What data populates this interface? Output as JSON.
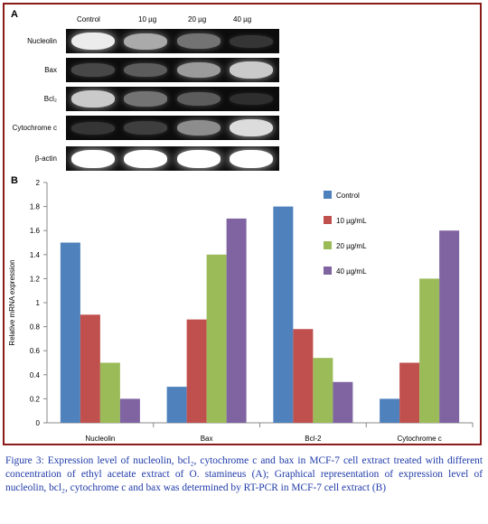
{
  "gel": {
    "panel_label": "A",
    "columns": [
      "Control",
      "10 µg",
      "20 µg",
      "40 µg"
    ],
    "rows": [
      {
        "label": "Nucleolin",
        "bands": [
          0.95,
          0.75,
          0.55,
          0.25
        ]
      },
      {
        "label": "Bax",
        "bands": [
          0.35,
          0.45,
          0.7,
          0.85
        ]
      },
      {
        "label": "Bcl₂",
        "bands": [
          0.85,
          0.55,
          0.45,
          0.2
        ]
      },
      {
        "label": "Cytochrome c",
        "bands": [
          0.25,
          0.3,
          0.65,
          0.9
        ]
      },
      {
        "label": "β-actin",
        "bands": [
          1.0,
          1.0,
          1.0,
          1.0
        ]
      }
    ]
  },
  "chart_data": {
    "panel_label": "B",
    "type": "bar",
    "categories": [
      "Nucleolin",
      "Bax",
      "Bcl-2",
      "Cytochrome c"
    ],
    "series": [
      {
        "name": "Control",
        "color": "#4f81bd",
        "values": [
          1.5,
          0.3,
          1.8,
          0.2
        ]
      },
      {
        "name": "10 µg/mL",
        "color": "#c0504d",
        "values": [
          0.9,
          0.86,
          0.78,
          0.5
        ]
      },
      {
        "name": "20 µg/mL",
        "color": "#9bbb59",
        "values": [
          0.5,
          1.4,
          0.54,
          1.2
        ]
      },
      {
        "name": "40 µg/mL",
        "color": "#8064a2",
        "values": [
          0.2,
          1.7,
          0.34,
          1.6
        ]
      }
    ],
    "ylabel": "Relative mRNA expression",
    "xlabel": "",
    "ylim": [
      0,
      2
    ],
    "yticks": [
      "0",
      "0.2",
      "0.4",
      "0.6",
      "0.8",
      "1",
      "1.2",
      "1.4",
      "1.6",
      "1.8",
      "2"
    ],
    "grid": false,
    "legend": "top-right"
  },
  "caption": {
    "text": "Figure 3: Expression level of nucleolin, bcl₂, cytochrome c and bax in MCF-7 cell extract treated with different concentration of ethyl acetate extract of O. stamineus (A); Graphical representation of expression level of nucleolin, bcl₂, cytochrome c and bax was determined by RT-PCR in MCF-7 cell extract (B)"
  }
}
